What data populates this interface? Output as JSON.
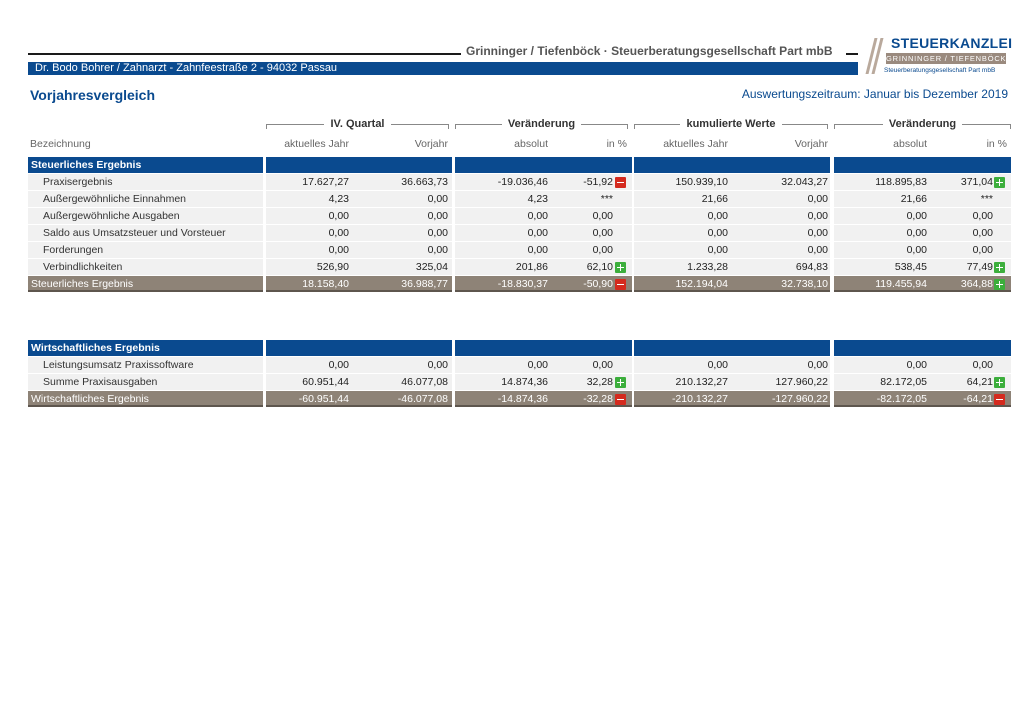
{
  "header": {
    "firm": "Grinninger / Tiefenböck · Steuerberatungsgesellschaft Part mbB",
    "client": "Dr. Bodo Bohrer / Zahnarzt  -  Zahnfeestraße 2  -  94032 Passau",
    "logo_title": "STEUERKANZLEI",
    "logo_names": "GRINNINGER  /  TIEFENBÖCK",
    "logo_sub": "Steuerberatungsgesellschaft Part mbB"
  },
  "title": "Vorjahresvergleich",
  "period": "Auswertungszeitraum: Januar bis Dezember 2019",
  "groups": [
    "IV. Quartal",
    "Veränderung",
    "kumulierte Werte",
    "Veränderung"
  ],
  "columns": [
    "Bezeichnung",
    "aktuelles Jahr",
    "Vorjahr",
    "absolut",
    "in %",
    "aktuelles Jahr",
    "Vorjahr",
    "absolut",
    "in %"
  ],
  "sections": [
    {
      "name": "Steuerliches Ergebnis",
      "rows": [
        {
          "label": "Praxisergebnis",
          "v": [
            "17.627,27",
            "36.663,73",
            "-19.036,46",
            "-51,92",
            "150.939,10",
            "32.043,27",
            "118.895,83",
            "371,04"
          ],
          "i1": "down",
          "i2": "up"
        },
        {
          "label": "Außergewöhnliche Einnahmen",
          "v": [
            "4,23",
            "0,00",
            "4,23",
            "***",
            "21,66",
            "0,00",
            "21,66",
            "***"
          ],
          "i1": "",
          "i2": ""
        },
        {
          "label": "Außergewöhnliche Ausgaben",
          "v": [
            "0,00",
            "0,00",
            "0,00",
            "0,00",
            "0,00",
            "0,00",
            "0,00",
            "0,00"
          ],
          "i1": "",
          "i2": ""
        },
        {
          "label": "Saldo aus Umsatzsteuer und Vorsteuer",
          "v": [
            "0,00",
            "0,00",
            "0,00",
            "0,00",
            "0,00",
            "0,00",
            "0,00",
            "0,00"
          ],
          "i1": "",
          "i2": ""
        },
        {
          "label": "Forderungen",
          "v": [
            "0,00",
            "0,00",
            "0,00",
            "0,00",
            "0,00",
            "0,00",
            "0,00",
            "0,00"
          ],
          "i1": "",
          "i2": ""
        },
        {
          "label": "Verbindlichkeiten",
          "v": [
            "526,90",
            "325,04",
            "201,86",
            "62,10",
            "1.233,28",
            "694,83",
            "538,45",
            "77,49"
          ],
          "i1": "up",
          "i2": "up"
        }
      ],
      "total": {
        "label": "Steuerliches Ergebnis",
        "v": [
          "18.158,40",
          "36.988,77",
          "-18.830,37",
          "-50,90",
          "152.194,04",
          "32.738,10",
          "119.455,94",
          "364,88"
        ],
        "i1": "down",
        "i2": "up"
      }
    },
    {
      "name": "Wirtschaftliches Ergebnis",
      "rows": [
        {
          "label": "Leistungsumsatz Praxissoftware",
          "v": [
            "0,00",
            "0,00",
            "0,00",
            "0,00",
            "0,00",
            "0,00",
            "0,00",
            "0,00"
          ],
          "i1": "",
          "i2": ""
        },
        {
          "label": "Summe Praxisausgaben",
          "v": [
            "60.951,44",
            "46.077,08",
            "14.874,36",
            "32,28",
            "210.132,27",
            "127.960,22",
            "82.172,05",
            "64,21"
          ],
          "i1": "up",
          "i2": "up"
        }
      ],
      "total": {
        "label": "Wirtschaftliches Ergebnis",
        "v": [
          "-60.951,44",
          "-46.077,08",
          "-14.874,36",
          "-32,28",
          "-210.132,27",
          "-127.960,22",
          "-82.172,05",
          "-64,21"
        ],
        "i1": "down",
        "i2": "down"
      }
    }
  ]
}
